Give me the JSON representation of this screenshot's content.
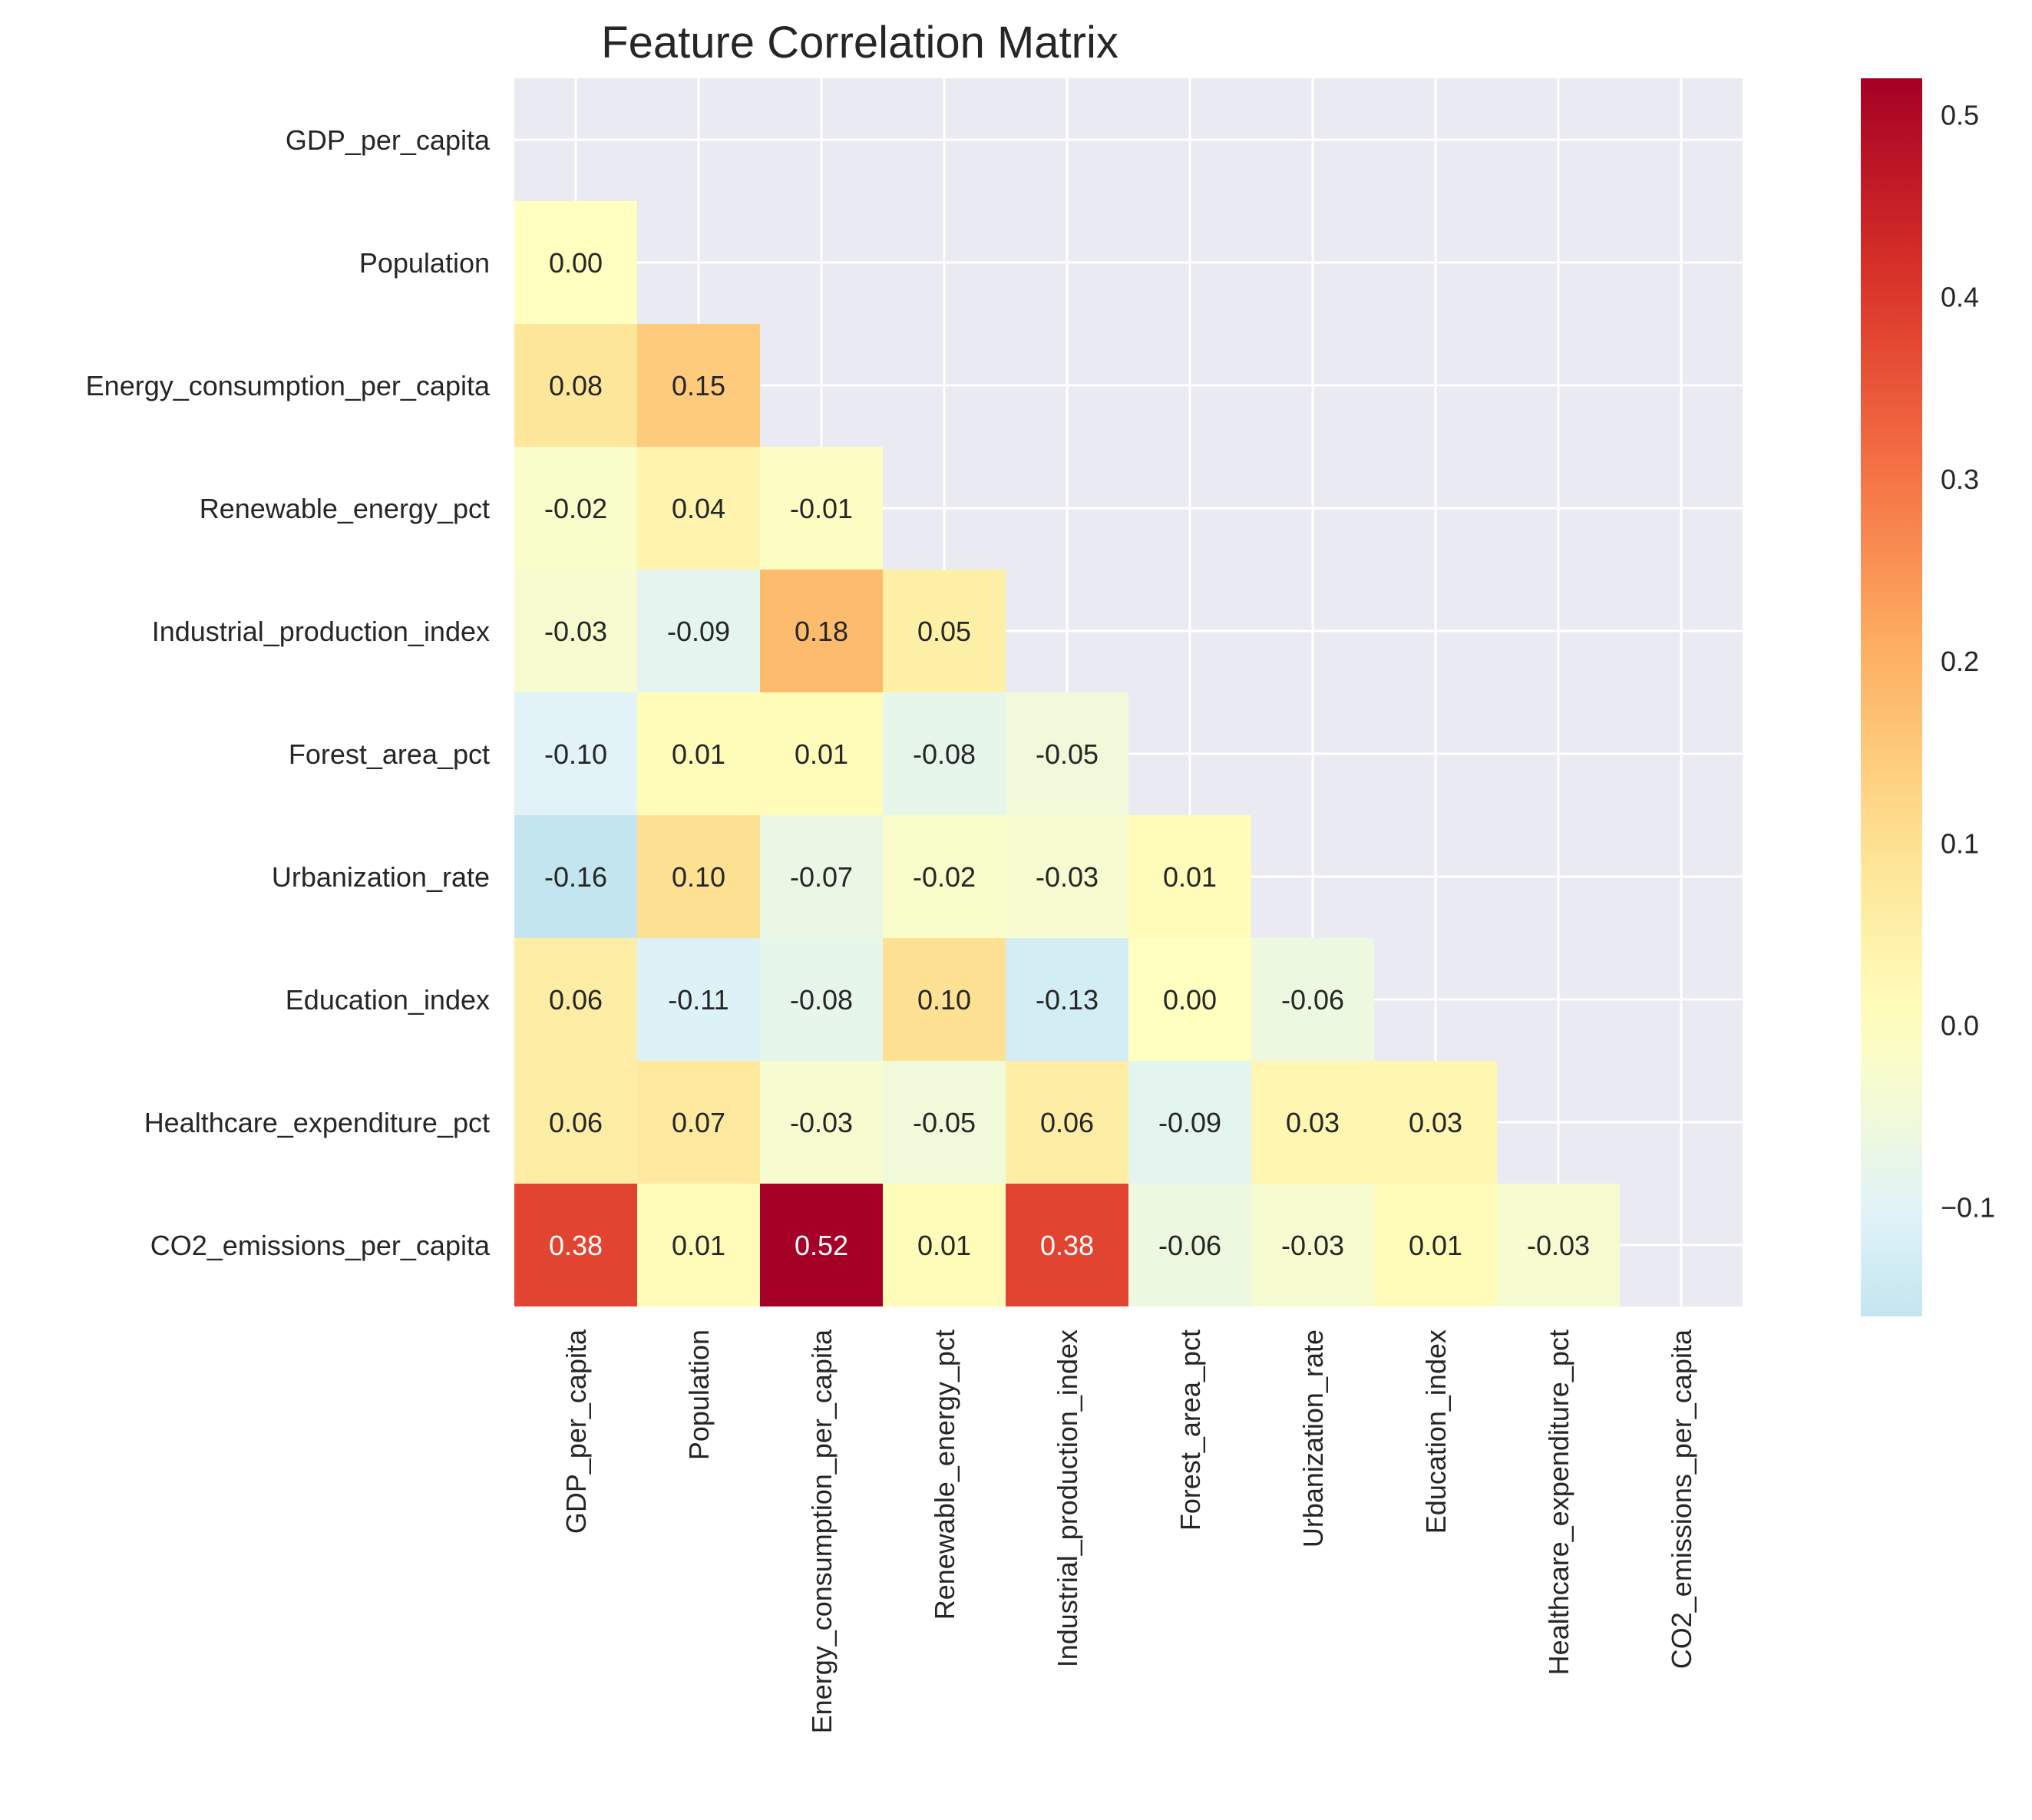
{
  "chart_data": {
    "type": "heatmap",
    "title": "Feature Correlation Matrix",
    "variables": [
      "GDP_per_capita",
      "Population",
      "Energy_consumption_per_capita",
      "Renewable_energy_pct",
      "Industrial_production_index",
      "Forest_area_pct",
      "Urbanization_rate",
      "Education_index",
      "Healthcare_expenditure_pct",
      "CO2_emissions_per_capita"
    ],
    "mask": "upper triangle including diagonal (lower triangle shown)",
    "values": [
      [
        null,
        null,
        null,
        null,
        null,
        null,
        null,
        null,
        null,
        null
      ],
      [
        0.0,
        null,
        null,
        null,
        null,
        null,
        null,
        null,
        null,
        null
      ],
      [
        0.08,
        0.15,
        null,
        null,
        null,
        null,
        null,
        null,
        null,
        null
      ],
      [
        -0.02,
        0.04,
        -0.01,
        null,
        null,
        null,
        null,
        null,
        null,
        null
      ],
      [
        -0.03,
        -0.09,
        0.18,
        0.05,
        null,
        null,
        null,
        null,
        null,
        null
      ],
      [
        -0.1,
        0.01,
        0.01,
        -0.08,
        -0.05,
        null,
        null,
        null,
        null,
        null
      ],
      [
        -0.16,
        0.1,
        -0.07,
        -0.02,
        -0.03,
        0.01,
        null,
        null,
        null,
        null
      ],
      [
        0.06,
        -0.11,
        -0.08,
        0.1,
        -0.13,
        0.0,
        -0.06,
        null,
        null,
        null
      ],
      [
        0.06,
        0.07,
        -0.03,
        -0.05,
        0.06,
        -0.09,
        0.03,
        0.03,
        null,
        null
      ],
      [
        0.38,
        0.01,
        0.52,
        0.01,
        0.38,
        -0.06,
        -0.03,
        0.01,
        -0.03,
        null
      ]
    ],
    "value_format": "0.00",
    "colormap": "RdYlBu_r (centered at 0)",
    "color_range": [
      -0.16,
      0.52
    ],
    "colorbar": {
      "ticks": [
        "0.5",
        "0.4",
        "0.3",
        "0.2",
        "0.1",
        "0.0",
        "−0.1"
      ],
      "tick_values": [
        0.5,
        0.4,
        0.3,
        0.2,
        0.1,
        0.0,
        -0.1
      ]
    },
    "grid": true,
    "background_color": "#EAEAF2"
  }
}
